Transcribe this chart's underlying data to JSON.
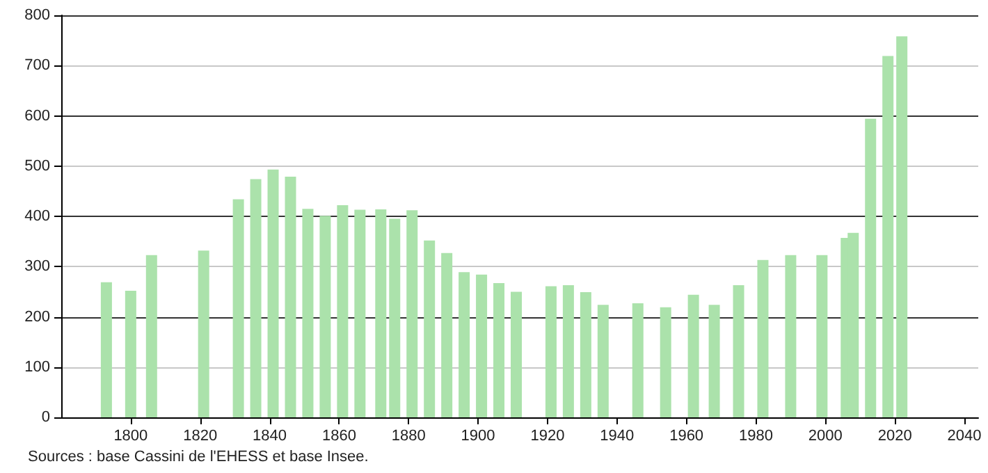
{
  "chart_data": {
    "type": "bar",
    "color": "#abe2ab",
    "x": [
      1793,
      1800,
      1806,
      1821,
      1831,
      1836,
      1841,
      1846,
      1851,
      1856,
      1861,
      1866,
      1872,
      1876,
      1881,
      1886,
      1891,
      1896,
      1901,
      1906,
      1911,
      1921,
      1926,
      1931,
      1936,
      1946,
      1954,
      1962,
      1968,
      1975,
      1982,
      1990,
      1999,
      2006,
      2008,
      2013,
      2018,
      2022
    ],
    "values": [
      269,
      252,
      323,
      332,
      434,
      474,
      493,
      479,
      415,
      401,
      422,
      413,
      414,
      395,
      412,
      352,
      327,
      289,
      284,
      267,
      250,
      261,
      263,
      249,
      224,
      227,
      219,
      244,
      224,
      263,
      313,
      323,
      323,
      357,
      367,
      594,
      719,
      758
    ],
    "xlim": [
      1780,
      2044
    ],
    "xticks": [
      1800,
      1820,
      1840,
      1860,
      1880,
      1900,
      1920,
      1940,
      1960,
      1980,
      2000,
      2020,
      2040
    ],
    "ylim": [
      0,
      800
    ],
    "yticks": [
      0,
      100,
      200,
      300,
      400,
      500,
      600,
      700,
      800
    ],
    "grid": "y",
    "annotations": [
      "Sources : base Cassini de l'EHESS et base Insee."
    ]
  }
}
